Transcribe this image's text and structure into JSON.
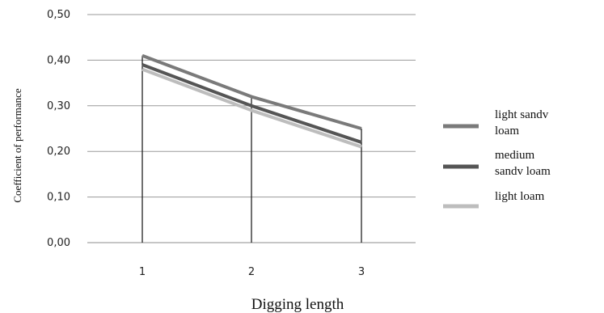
{
  "chart_data": {
    "type": "line",
    "categories": [
      "1",
      "2",
      "3"
    ],
    "x": [
      1,
      2,
      3
    ],
    "xlabel": "Digging length",
    "ylabel": "Coefficient of performance",
    "yticks": [
      "0,00",
      "0,10",
      "0,20",
      "0,30",
      "0,40",
      "0,50"
    ],
    "ylim": [
      0,
      0.5
    ],
    "grid": true,
    "legend_position": "right",
    "series": [
      {
        "name": "light sandy loam",
        "name_lines": [
          "light sandv",
          "loam"
        ],
        "values": [
          0.41,
          0.32,
          0.25
        ],
        "color": "#7a7a7a"
      },
      {
        "name": "medium sandy loam",
        "name_lines": [
          "medium",
          "sandv loam"
        ],
        "values": [
          0.39,
          0.3,
          0.22
        ],
        "color": "#555555"
      },
      {
        "name": "light loam",
        "name_lines": [
          "light loam"
        ],
        "values": [
          0.38,
          0.29,
          0.21
        ],
        "color": "#bdbdbd"
      }
    ]
  }
}
